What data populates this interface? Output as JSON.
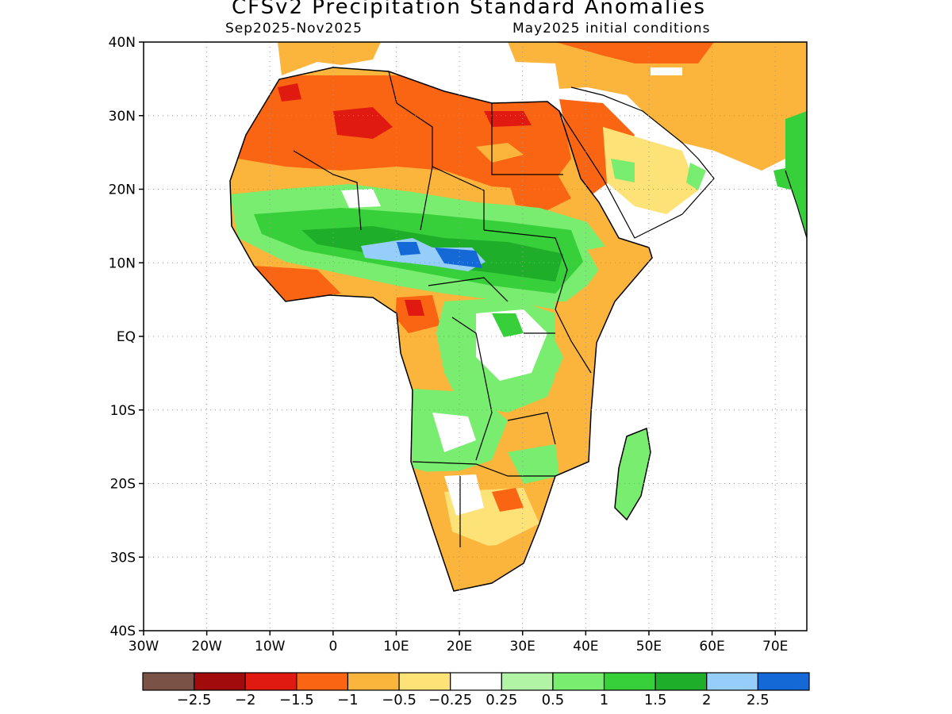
{
  "header": {
    "title": "CFSv2 Precipitation Standard Anomalies",
    "period": "Sep2025-Nov2025",
    "init": "May2025 initial conditions"
  },
  "axes": {
    "lat_labels": [
      "40N",
      "30N",
      "20N",
      "10N",
      "EQ",
      "10S",
      "20S",
      "30S",
      "40S"
    ],
    "lon_labels": [
      "30W",
      "20W",
      "10W",
      "0",
      "10E",
      "20E",
      "30E",
      "40E",
      "50E",
      "60E",
      "70E"
    ],
    "lat_range": [
      -40,
      40
    ],
    "lon_range": [
      -30,
      75
    ],
    "grid": "dotted"
  },
  "colorbar": {
    "colors": [
      "#7a5346",
      "#a10b0b",
      "#e01a10",
      "#fa6513",
      "#fbb53c",
      "#fde278",
      "#ffffff",
      "#b2f4a6",
      "#78ed6f",
      "#38d03a",
      "#1fae2a",
      "#96cefa",
      "#1569d6"
    ],
    "labels": [
      "-2.5",
      "-2",
      "-1.5",
      "-1",
      "-0.5",
      "-0.25",
      "0.25",
      "0.5",
      "1",
      "1.5",
      "2",
      "2.5"
    ]
  },
  "regions": [
    {
      "name": "sahara-north-dry",
      "level": "-1"
    },
    {
      "name": "sahel-wet",
      "level": "1.5"
    },
    {
      "name": "chad-sudan-wet-core",
      "level": "2.5"
    },
    {
      "name": "east-africa-dry",
      "level": "-0.5"
    },
    {
      "name": "southern-africa-dry",
      "level": "-0.5"
    }
  ]
}
